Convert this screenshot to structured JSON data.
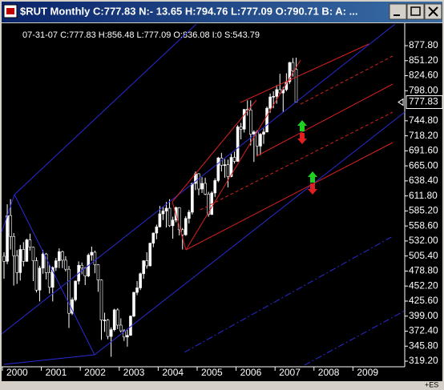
{
  "chart_data": {
    "type": "candlestick",
    "title": "$RUT Monthly C:777.83 N:- 13.65 H:794.76 L:777.09 O:790.71 B: A: ...",
    "info": "07-31-07    C:777.83    H:856.48    L:777.09    O:836.08    I:0    S:543.79",
    "footer": "+ES",
    "categories": [
      "2000",
      null,
      null,
      null,
      null,
      null,
      null,
      null,
      null,
      null,
      null,
      null,
      "2001",
      null,
      null,
      null,
      null,
      null,
      null,
      null,
      null,
      null,
      null,
      null,
      "2002",
      null,
      null,
      null,
      null,
      null,
      null,
      null,
      null,
      null,
      null,
      null,
      "2003",
      null,
      null,
      null,
      null,
      null,
      null,
      null,
      null,
      null,
      null,
      null,
      "2004",
      null,
      null,
      null,
      null,
      null,
      null,
      null,
      null,
      null,
      null,
      null,
      "2005",
      null,
      null,
      null,
      null,
      null,
      null,
      null,
      null,
      null,
      null,
      null,
      "2006",
      null,
      null,
      null,
      null,
      null,
      null,
      null,
      null,
      null,
      null,
      null,
      "2007",
      null,
      null,
      null,
      null,
      null,
      null,
      null,
      null,
      null,
      null,
      null,
      "2008",
      null,
      null,
      null,
      null,
      null,
      null,
      null,
      null,
      null,
      null,
      null,
      "2009",
      null,
      null,
      null,
      null,
      null,
      null,
      null,
      null,
      null,
      null,
      null
    ],
    "open": [
      505,
      496,
      577,
      540,
      506,
      476,
      517,
      496,
      534,
      521,
      497,
      445,
      484,
      509,
      476,
      450,
      485,
      497,
      513,
      498,
      482,
      404,
      428,
      461,
      489,
      484,
      470,
      507,
      512,
      490,
      463,
      392,
      392,
      363,
      375,
      410,
      383,
      373,
      362,
      365,
      399,
      441,
      449,
      474,
      497,
      488,
      528,
      546,
      557,
      580,
      585,
      590,
      559,
      569,
      591,
      552,
      543,
      572,
      583,
      634,
      651,
      624,
      634,
      615,
      579,
      617,
      639,
      679,
      666,
      667,
      646,
      680,
      673,
      734,
      730,
      765,
      764,
      721,
      725,
      700,
      721,
      725,
      767,
      787,
      788,
      800,
      794,
      800,
      814,
      848,
      836.08,
      null,
      null,
      null,
      null,
      null,
      null,
      null,
      null,
      null,
      null,
      null,
      null,
      null,
      null,
      null,
      null,
      null,
      null,
      null,
      null,
      null,
      null,
      null,
      null,
      null,
      null,
      null,
      null,
      null
    ],
    "high": [
      512,
      597,
      606,
      546,
      516,
      525,
      530,
      536,
      545,
      522,
      503,
      488,
      516,
      511,
      490,
      487,
      502,
      519,
      515,
      505,
      488,
      432,
      462,
      496,
      494,
      486,
      510,
      522,
      515,
      491,
      464,
      405,
      394,
      379,
      412,
      413,
      395,
      376,
      375,
      400,
      442,
      461,
      476,
      498,
      512,
      529,
      547,
      561,
      594,
      593,
      601,
      606,
      575,
      593,
      592,
      555,
      576,
      587,
      635,
      655,
      652,
      645,
      644,
      619,
      620,
      643,
      681,
      688,
      677,
      676,
      686,
      690,
      737,
      741,
      765,
      781,
      781,
      728,
      728,
      723,
      731,
      770,
      793,
      797,
      808,
      828,
      805,
      829,
      849,
      856,
      856.48,
      null,
      null,
      null,
      null,
      null,
      null,
      null,
      null,
      null,
      null,
      null,
      null,
      null,
      null,
      null,
      null,
      null,
      null,
      null,
      null,
      null,
      null,
      null,
      null,
      null,
      null,
      null,
      null,
      null
    ],
    "low": [
      465,
      491,
      517,
      453,
      456,
      462,
      487,
      495,
      515,
      461,
      441,
      425,
      474,
      464,
      439,
      425,
      479,
      484,
      484,
      478,
      378,
      401,
      425,
      455,
      473,
      454,
      468,
      497,
      475,
      442,
      357,
      371,
      358,
      327,
      372,
      376,
      370,
      355,
      345,
      364,
      397,
      436,
      445,
      465,
      483,
      487,
      521,
      535,
      556,
      569,
      556,
      557,
      536,
      565,
      542,
      517,
      541,
      563,
      579,
      622,
      613,
      617,
      613,
      575,
      578,
      610,
      636,
      655,
      644,
      627,
      645,
      669,
      672,
      712,
      724,
      754,
      701,
      672,
      682,
      684,
      704,
      724,
      759,
      767,
      775,
      794,
      760,
      797,
      810,
      823,
      777.09,
      null,
      null,
      null,
      null,
      null,
      null,
      null,
      null,
      null,
      null,
      null,
      null,
      null,
      null,
      null,
      null,
      null,
      null,
      null,
      null,
      null,
      null,
      null,
      null,
      null,
      null,
      null,
      null,
      null
    ],
    "close": [
      496,
      577,
      540,
      506,
      476,
      517,
      496,
      534,
      521,
      497,
      445,
      484,
      509,
      476,
      450,
      485,
      497,
      513,
      498,
      482,
      404,
      428,
      461,
      489,
      484,
      470,
      507,
      512,
      490,
      463,
      392,
      392,
      363,
      375,
      410,
      383,
      373,
      362,
      365,
      399,
      441,
      449,
      474,
      497,
      488,
      528,
      546,
      557,
      580,
      585,
      590,
      559,
      569,
      591,
      552,
      543,
      572,
      583,
      634,
      651,
      624,
      634,
      615,
      579,
      617,
      639,
      679,
      666,
      667,
      646,
      680,
      673,
      734,
      730,
      765,
      764,
      721,
      725,
      700,
      721,
      725,
      767,
      787,
      788,
      800,
      794,
      800,
      814,
      848,
      833,
      777.83,
      null,
      null,
      null,
      null,
      null,
      null,
      null,
      null,
      null,
      null,
      null,
      null,
      null,
      null,
      null,
      null,
      null,
      null,
      null,
      null,
      null,
      null,
      null,
      null,
      null,
      null,
      null,
      null,
      null
    ],
    "up_color": "#ffffff",
    "down_color": "#000000",
    "last_price": 777.83,
    "ylim": [
      309.3,
      916.1
    ],
    "yticks": [
      {
        "value": 877.8,
        "label": "877.80"
      },
      {
        "value": 851.2,
        "label": "851.20"
      },
      {
        "value": 824.6,
        "label": "824.60"
      },
      {
        "value": 798,
        "label": "798.00"
      },
      {
        "value": 744.8,
        "label": "744.80"
      },
      {
        "value": 718.2,
        "label": "718.20"
      },
      {
        "value": 691.6,
        "label": "691.60"
      },
      {
        "value": 665,
        "label": "665.00"
      },
      {
        "value": 638.4,
        "label": "638.40"
      },
      {
        "value": 611.8,
        "label": "611.80"
      },
      {
        "value": 585.2,
        "label": "585.20"
      },
      {
        "value": 558.6,
        "label": "558.60"
      },
      {
        "value": 532,
        "label": "532.00"
      },
      {
        "value": 505.4,
        "label": "505.40"
      },
      {
        "value": 478.8,
        "label": "478.80"
      },
      {
        "value": 452.2,
        "label": "452.20"
      },
      {
        "value": 425.6,
        "label": "425.60"
      },
      {
        "value": 399,
        "label": "399.00"
      },
      {
        "value": 372.4,
        "label": "372.40"
      },
      {
        "value": 345.8,
        "label": "345.80"
      },
      {
        "value": 319.2,
        "label": "319.20"
      }
    ]
  }
}
